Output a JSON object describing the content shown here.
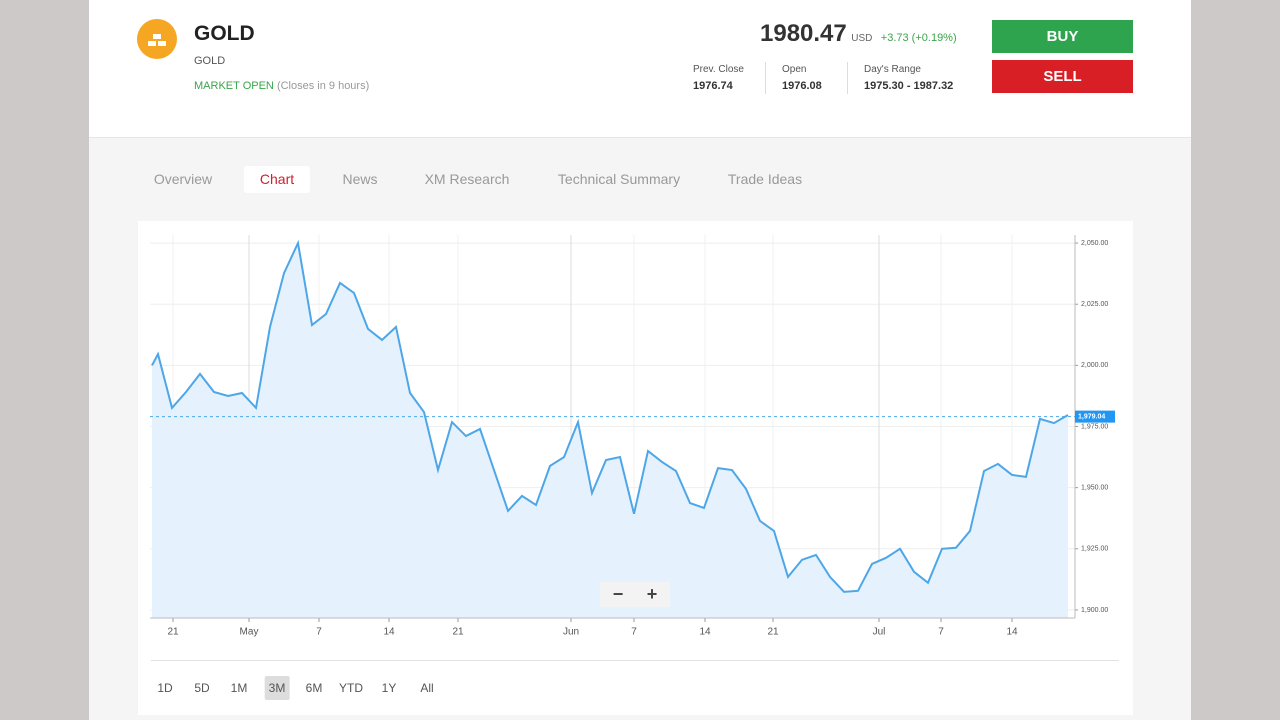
{
  "header": {
    "symbol": "GOLD",
    "name": "GOLD",
    "status": "MARKET OPEN",
    "closes": "(Closes in 9 hours)",
    "price": "1980.47",
    "currency": "USD",
    "change": "+3.73 (+0.19%)",
    "stats": [
      {
        "label": "Prev. Close",
        "value": "1976.74"
      },
      {
        "label": "Open",
        "value": "1976.08"
      },
      {
        "label": "Day's Range",
        "value": "1975.30 - 1987.32"
      }
    ],
    "buy": "BUY",
    "sell": "SELL"
  },
  "tabs": {
    "items": [
      "Overview",
      "Chart",
      "News",
      "XM Research",
      "Technical Summary",
      "Trade Ideas"
    ],
    "active": 1
  },
  "zoom_buttons": [
    "−",
    "+"
  ],
  "ranges": {
    "items": [
      "1D",
      "5D",
      "1M",
      "3M",
      "6M",
      "YTD",
      "1Y",
      "All"
    ],
    "active": 3
  },
  "chart_data": {
    "type": "area",
    "color": "#4da6e8",
    "fill": "#e5f1fc",
    "grid": true,
    "x": [
      0.2,
      0.8,
      2.2,
      3.6,
      5.0,
      6.4,
      7.8,
      9.2,
      10.6,
      12.0,
      13.4,
      14.8,
      16.2,
      17.6,
      19.0,
      20.4,
      21.8,
      23.2,
      24.6,
      26.0,
      27.4,
      28.8,
      30.2,
      31.6,
      33.0,
      34.4,
      35.8,
      37.2,
      38.6,
      40.0,
      41.4,
      42.8,
      44.2,
      45.6,
      47.0,
      48.4,
      49.8,
      51.2,
      52.6,
      54.0,
      55.4,
      56.8,
      58.2,
      59.6,
      61.0,
      62.4,
      63.8,
      65.2,
      66.6,
      68.0,
      69.4,
      70.8,
      72.2,
      73.6,
      75.0,
      76.4,
      77.8,
      79.2,
      80.6,
      82.0,
      83.4,
      84.8,
      86.2,
      87.6,
      89.0,
      90.4,
      91.8
    ],
    "values": [
      2000,
      2004.6,
      1982.6,
      1989.1,
      1996.5,
      1989.1,
      1987.5,
      1988.7,
      1982.6,
      2015.7,
      2037.7,
      2050,
      2016.5,
      2021,
      2033.7,
      2029.6,
      2014.9,
      2010.4,
      2015.7,
      1988.7,
      1980.9,
      1957.2,
      1976.8,
      1971.1,
      1974,
      1957.2,
      1940.5,
      1946.6,
      1942.9,
      1958.9,
      1962.5,
      1976.8,
      1947.8,
      1961.3,
      1962.5,
      1939.3,
      1965,
      1960.5,
      1956.8,
      1943.7,
      1941.7,
      1958,
      1957.2,
      1949.5,
      1936.4,
      1932.3,
      1913.5,
      1920.5,
      1922.5,
      1913.5,
      1907.4,
      1907.8,
      1918.8,
      1921.3,
      1925,
      1915.6,
      1911.1,
      1925,
      1925.4,
      1932.3,
      1956.8,
      1959.7,
      1955.2,
      1954.4,
      1978.1,
      1976.4,
      1979.7
    ],
    "xlim": [
      0,
      92.5
    ],
    "ylim": [
      1896.7,
      2053.3
    ],
    "xticks": [
      {
        "value": 2.3,
        "label": "21"
      },
      {
        "value": 9.9,
        "label": "May"
      },
      {
        "value": 16.9,
        "label": "7"
      },
      {
        "value": 23.9,
        "label": "14"
      },
      {
        "value": 30.8,
        "label": "21"
      },
      {
        "value": 42.1,
        "label": "Jun"
      },
      {
        "value": 48.4,
        "label": "7"
      },
      {
        "value": 55.5,
        "label": "14"
      },
      {
        "value": 62.3,
        "label": "21"
      },
      {
        "value": 72.9,
        "label": "Jul"
      },
      {
        "value": 79.1,
        "label": "7"
      },
      {
        "value": 86.2,
        "label": "14"
      }
    ],
    "yticks": [
      {
        "value": 1900,
        "label": "1,900.00"
      },
      {
        "value": 1925,
        "label": "1,925.00"
      },
      {
        "value": 1950,
        "label": "1,950.00"
      },
      {
        "value": 1975,
        "label": "1,975.00"
      },
      {
        "value": 2000,
        "label": "2,000.00"
      },
      {
        "value": 2025,
        "label": "2,025.00"
      },
      {
        "value": 2050,
        "label": "2,050.00"
      }
    ],
    "last_price": {
      "value": 1979.04,
      "label": "1,979.04"
    }
  }
}
